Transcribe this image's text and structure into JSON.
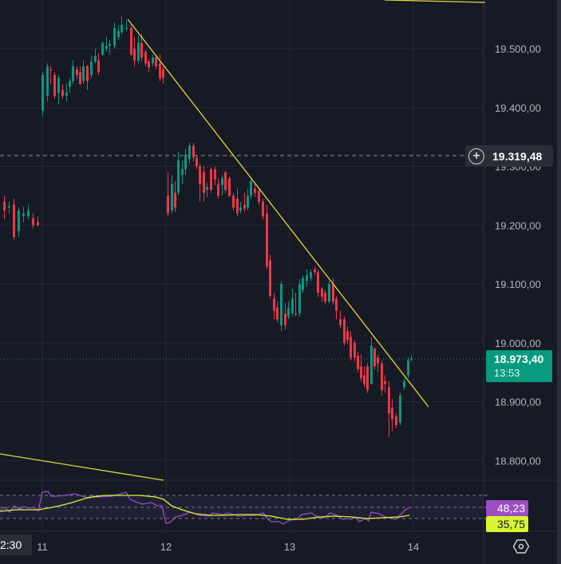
{
  "chart_data": {
    "type": "candlestick",
    "title": "",
    "instrument": "",
    "y_axis": {
      "ticks": [
        "19.500,00",
        "19.400,00",
        "19.300,00",
        "19.200,00",
        "19.100,00",
        "19.000,00",
        "18.900,00",
        "18.800,00"
      ],
      "tick_values": [
        19500,
        19400,
        19300,
        19200,
        19100,
        19000,
        18900,
        18800
      ],
      "range": [
        18760,
        19560
      ]
    },
    "x_axis": {
      "ticks": [
        "11",
        "12",
        "13",
        "14"
      ],
      "crosshair_label": "2:30"
    },
    "crosshair_price": "19.319,48",
    "last_price": "18.973,40",
    "countdown": "13:53",
    "colors": {
      "up": "#089981",
      "down": "#f23645",
      "trendline": "#e6d636",
      "rsi": "#9c4fc3",
      "rsi_ma": "#d9f531",
      "background": "#161a25",
      "grid": "#242833"
    },
    "trendlines": [
      {
        "name": "main-downtrend",
        "from": [
          160,
          24
        ],
        "to": [
          537,
          510
        ]
      },
      {
        "name": "lower-support",
        "from": [
          0,
          569
        ],
        "to": [
          205,
          602
        ]
      },
      {
        "name": "upper-line",
        "from": [
          482,
          0
        ],
        "to": [
          608,
          3
        ]
      }
    ],
    "approx_series_summary": {
      "day_11_high": 19540,
      "day_12_high": 19335,
      "day_13_low": 19020,
      "day_14_low": 18845,
      "last": 18973.4
    },
    "rsi_panel": {
      "rsi_value": "48,23",
      "rsi_ma_value": "35,75",
      "band_upper": 70,
      "band_mid": 50,
      "band_lower": 30
    }
  },
  "ui": {
    "settings_icon": "hexagon-settings-icon",
    "crosshair_icon": "plus-circle-icon"
  }
}
